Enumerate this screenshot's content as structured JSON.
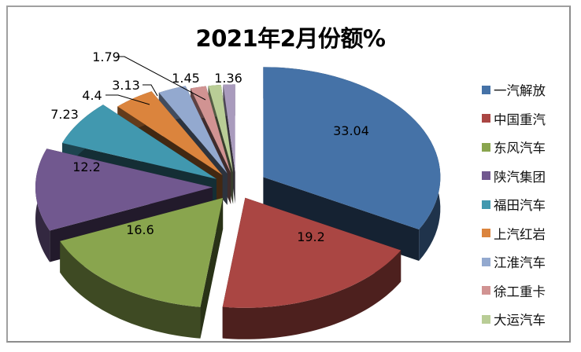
{
  "chart": {
    "title": "2021年2月份额%"
  },
  "legend": {
    "position": "right",
    "items": [
      {
        "label": "一汽解放",
        "color": "#4572a7"
      },
      {
        "label": "中国重汽",
        "color": "#aa4643"
      },
      {
        "label": "东风汽车",
        "color": "#89a54e"
      },
      {
        "label": "陕汽集团",
        "color": "#71588f"
      },
      {
        "label": "福田汽车",
        "color": "#4198af"
      },
      {
        "label": "上汽红岩",
        "color": "#db843d"
      },
      {
        "label": "江淮汽车",
        "color": "#93a9cf"
      },
      {
        "label": "徐工重卡",
        "color": "#d19392"
      },
      {
        "label": "大运汽车",
        "color": "#b9cd96"
      }
    ]
  },
  "chart_data": {
    "type": "pie",
    "subtype": "3d-exploded",
    "title": "2021年2月份额%",
    "categories": [
      "一汽解放",
      "中国重汽",
      "东风汽车",
      "陕汽集团",
      "福田汽车",
      "上汽红岩",
      "江淮汽车",
      "徐工重卡",
      "大运汽车",
      ""
    ],
    "values": [
      33.04,
      19.2,
      16.6,
      12.2,
      7.23,
      4.4,
      3.13,
      1.79,
      1.45,
      1.36
    ],
    "colors": [
      "#4572a7",
      "#aa4643",
      "#89a54e",
      "#71588f",
      "#4198af",
      "#db843d",
      "#93a9cf",
      "#d19392",
      "#b9cd96",
      "#a99bbd"
    ],
    "data_labels": [
      "33.04",
      "19.2",
      "16.6",
      "12.2",
      "7.23",
      "4.4",
      "3.13",
      "1.79",
      "1.45",
      "1.36"
    ],
    "legend_position": "right",
    "unit": "%"
  }
}
